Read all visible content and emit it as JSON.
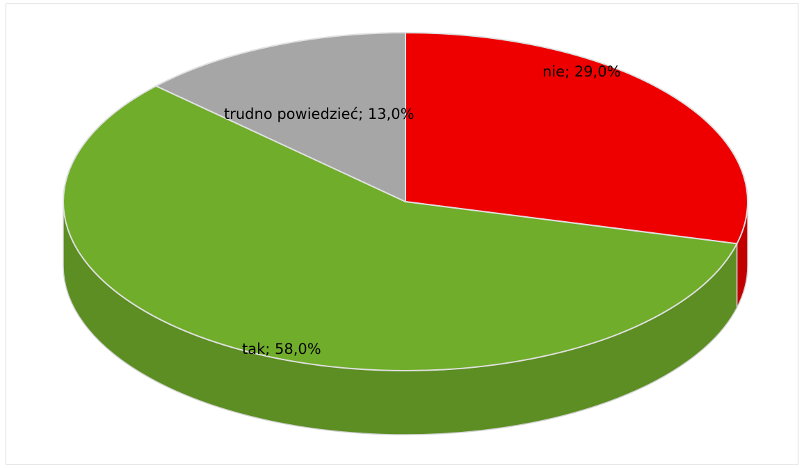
{
  "chart_data": {
    "type": "pie3d",
    "values": [
      29,
      58,
      13
    ],
    "value_labels": [
      "nie; 29,0%",
      "tak; 58,0%",
      "trudno powiedzieć; 13,0%"
    ],
    "colors": [
      "#ee0000",
      "#70ad2b",
      "#a6a6a6"
    ]
  }
}
